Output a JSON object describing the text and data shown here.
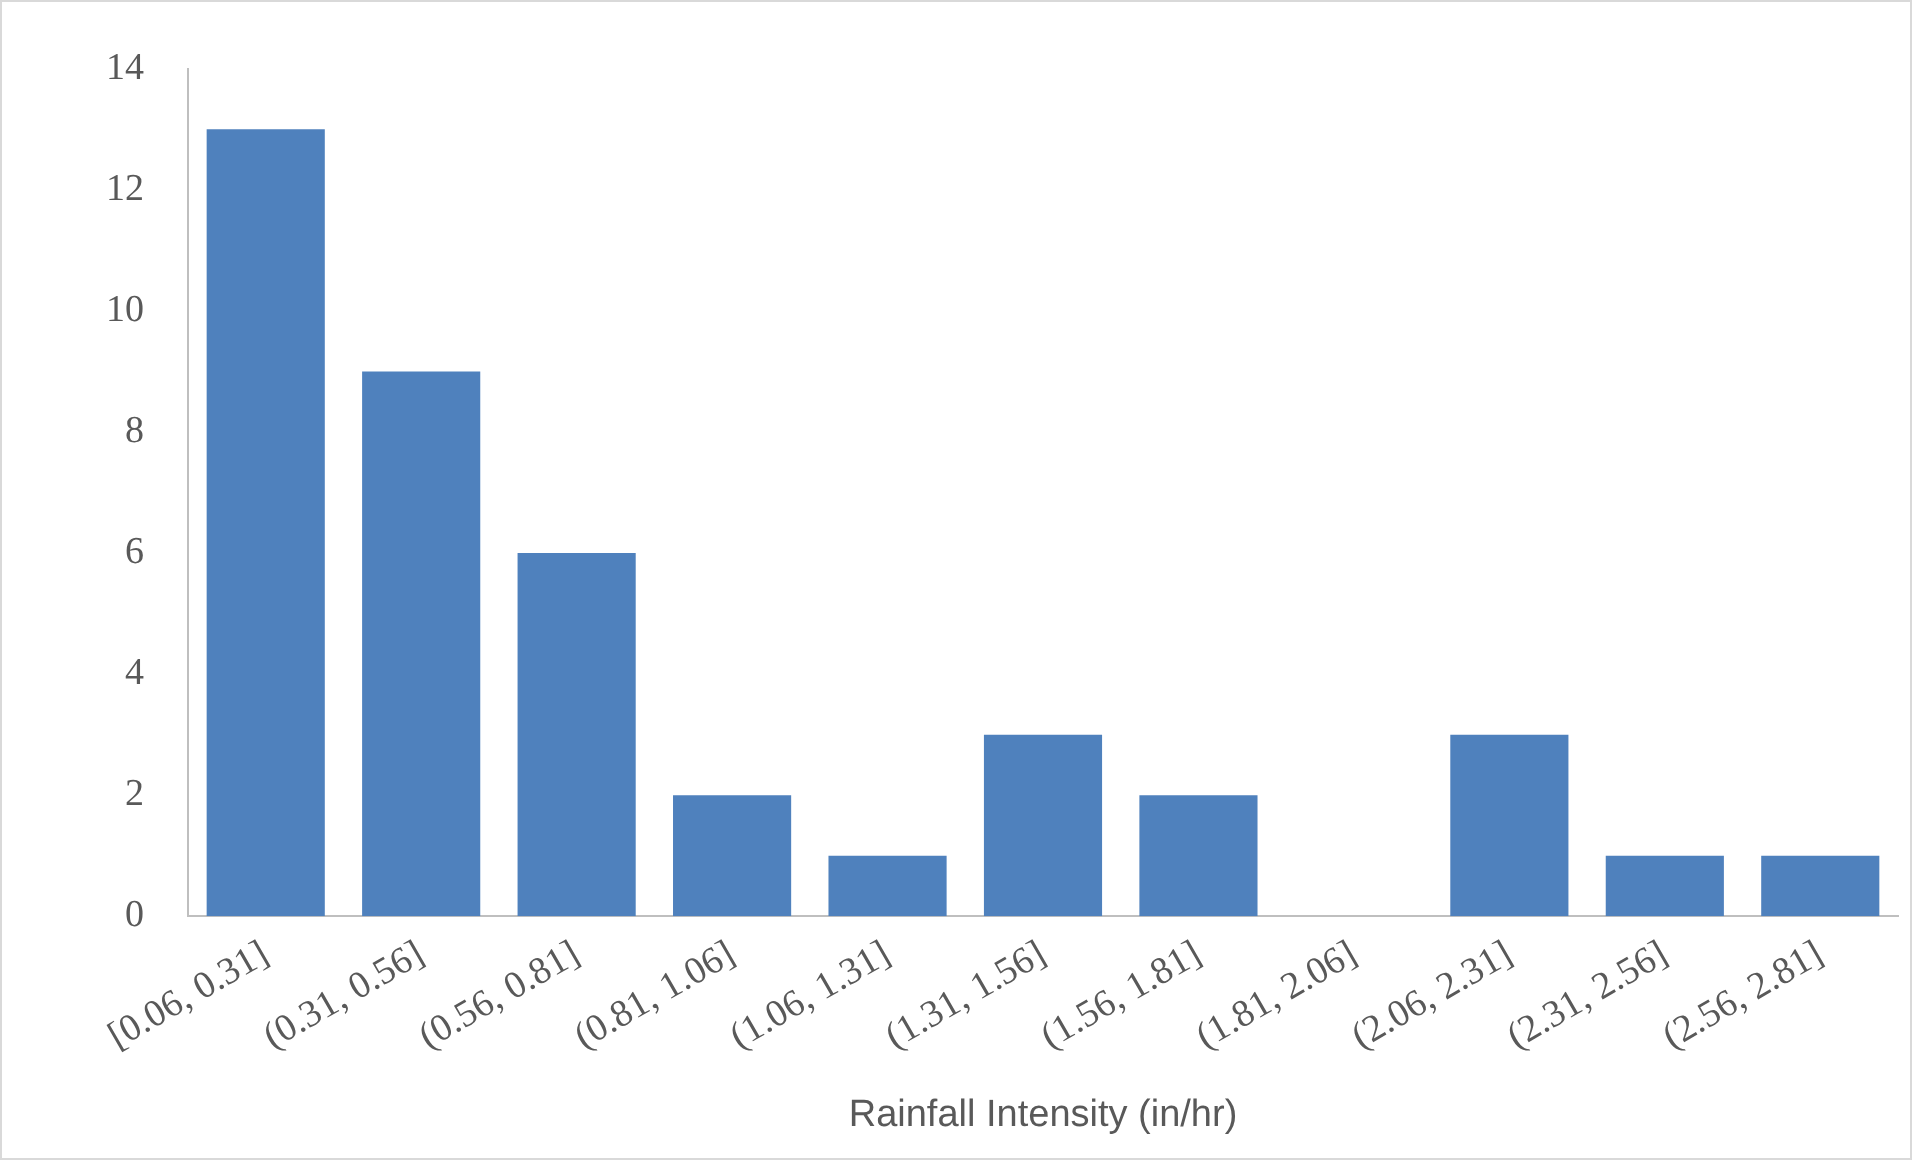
{
  "chart_data": {
    "type": "bar",
    "xlabel": "Rainfall Intensity (in/hr)",
    "categories": [
      "[0.06, 0.31]",
      "(0.31, 0.56]",
      "(0.56, 0.81]",
      "(0.81, 1.06]",
      "(1.06, 1.31]",
      "(1.31, 1.56]",
      "(1.56, 1.81]",
      "(1.81, 2.06]",
      "(2.06, 2.31]",
      "(2.31, 2.56]",
      "(2.56, 2.81]"
    ],
    "values": [
      13,
      9,
      6,
      2,
      1,
      3,
      2,
      0,
      3,
      1,
      1
    ],
    "color": "#4f81bd",
    "ylim": [
      0,
      14
    ],
    "yticks": [
      0,
      2,
      4,
      6,
      8,
      10,
      12,
      14
    ]
  }
}
